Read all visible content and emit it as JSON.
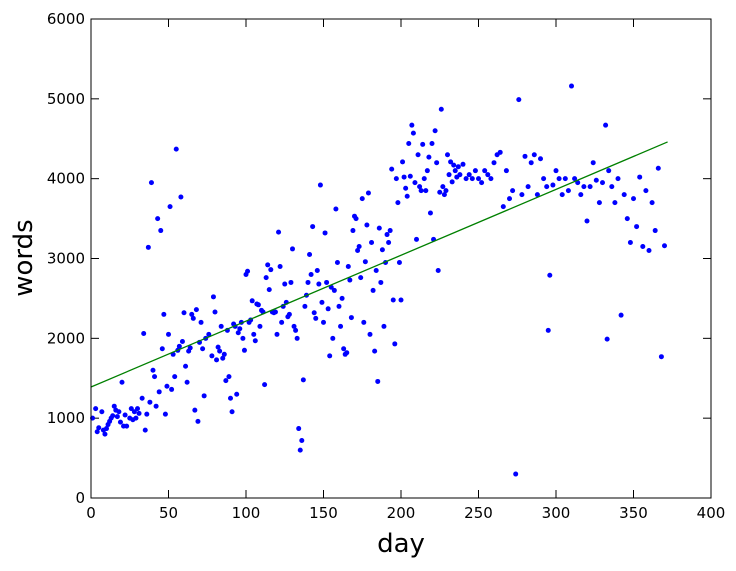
{
  "chart_data": {
    "type": "scatter",
    "xlabel": "day",
    "ylabel": "words",
    "xlim": [
      0,
      400
    ],
    "ylim": [
      0,
      6000
    ],
    "xticks": [
      0,
      50,
      100,
      150,
      200,
      250,
      300,
      350,
      400
    ],
    "yticks": [
      0,
      1000,
      2000,
      3000,
      4000,
      5000,
      6000
    ],
    "grid": false,
    "series": [
      {
        "type": "scatter",
        "color": "#0000ff",
        "x": [
          1,
          3,
          4,
          5,
          7,
          8,
          9,
          10,
          11,
          12,
          13,
          14,
          15,
          16,
          17,
          18,
          19,
          20,
          21,
          22,
          23,
          25,
          26,
          27,
          28,
          29,
          30,
          31,
          33,
          34,
          35,
          36,
          37,
          38,
          39,
          40,
          41,
          42,
          43,
          44,
          45,
          46,
          47,
          48,
          49,
          50,
          51,
          52,
          53,
          54,
          55,
          56,
          57,
          58,
          59,
          60,
          61,
          62,
          63,
          64,
          65,
          66,
          67,
          68,
          69,
          70,
          71,
          72,
          73,
          74,
          76,
          78,
          79,
          80,
          81,
          82,
          83,
          84,
          85,
          86,
          87,
          88,
          89,
          90,
          91,
          92,
          93,
          94,
          95,
          96,
          97,
          98,
          99,
          100,
          101,
          102,
          103,
          104,
          105,
          106,
          107,
          108,
          109,
          110,
          111,
          112,
          113,
          114,
          115,
          116,
          117,
          118,
          119,
          120,
          121,
          122,
          123,
          124,
          125,
          126,
          127,
          128,
          129,
          130,
          131,
          132,
          133,
          134,
          135,
          136,
          137,
          138,
          139,
          140,
          141,
          142,
          143,
          144,
          145,
          146,
          147,
          148,
          149,
          150,
          151,
          152,
          153,
          154,
          155,
          156,
          157,
          158,
          159,
          160,
          161,
          162,
          163,
          164,
          165,
          166,
          167,
          168,
          169,
          170,
          171,
          172,
          173,
          174,
          175,
          176,
          177,
          178,
          179,
          180,
          181,
          182,
          183,
          184,
          185,
          186,
          187,
          188,
          189,
          190,
          191,
          192,
          193,
          194,
          195,
          196,
          197,
          198,
          199,
          200,
          201,
          202,
          203,
          204,
          205,
          206,
          207,
          208,
          209,
          210,
          211,
          212,
          213,
          214,
          215,
          216,
          217,
          218,
          219,
          220,
          221,
          222,
          223,
          224,
          225,
          226,
          227,
          228,
          229,
          230,
          231,
          232,
          233,
          234,
          235,
          236,
          237,
          238,
          240,
          242,
          244,
          246,
          248,
          250,
          252,
          254,
          256,
          258,
          260,
          262,
          264,
          266,
          268,
          270,
          272,
          274,
          276,
          278,
          280,
          282,
          284,
          286,
          288,
          290,
          292,
          294,
          295,
          296,
          298,
          300,
          302,
          304,
          306,
          308,
          310,
          312,
          314,
          316,
          318,
          320,
          322,
          324,
          326,
          328,
          330,
          332,
          333,
          334,
          336,
          338,
          340,
          342,
          344,
          346,
          348,
          350,
          352,
          354,
          356,
          358,
          360,
          362,
          364,
          366,
          368,
          370
        ],
        "values": [
          1000,
          1120,
          830,
          880,
          1080,
          850,
          800,
          870,
          920,
          960,
          1000,
          1030,
          1150,
          1100,
          1020,
          1080,
          950,
          1450,
          900,
          1040,
          900,
          1000,
          1120,
          980,
          1080,
          1000,
          1120,
          1060,
          1250,
          2060,
          850,
          1050,
          3140,
          1200,
          3950,
          1600,
          1520,
          1150,
          3500,
          1330,
          3350,
          1870,
          2300,
          1050,
          1400,
          2050,
          3650,
          1360,
          1800,
          1520,
          4370,
          1850,
          1900,
          3770,
          1960,
          2320,
          1650,
          1450,
          1840,
          1880,
          2300,
          2250,
          1100,
          2360,
          960,
          1950,
          2200,
          1870,
          1280,
          2000,
          2050,
          1780,
          2520,
          2330,
          1730,
          1890,
          1840,
          2150,
          1750,
          1800,
          1470,
          2100,
          1520,
          1250,
          1080,
          2180,
          2150,
          1300,
          2070,
          2120,
          2200,
          2000,
          1850,
          2800,
          2840,
          2200,
          2230,
          2470,
          2050,
          1970,
          2430,
          2420,
          2150,
          2350,
          2330,
          1420,
          2760,
          2920,
          2610,
          2860,
          2330,
          2320,
          2330,
          2050,
          3330,
          2900,
          2200,
          2400,
          2680,
          2450,
          2270,
          2300,
          2700,
          3120,
          2150,
          2100,
          2000,
          870,
          600,
          720,
          1480,
          2400,
          2540,
          2700,
          3050,
          2800,
          3400,
          2320,
          2250,
          2850,
          2680,
          3920,
          2450,
          2200,
          3320,
          2700,
          2370,
          1780,
          2640,
          2000,
          2600,
          3620,
          2950,
          2400,
          2150,
          2500,
          1870,
          1800,
          1820,
          2900,
          2730,
          2260,
          3350,
          3530,
          3500,
          3100,
          3150,
          2760,
          3750,
          2200,
          2960,
          3420,
          3820,
          2050,
          3200,
          2600,
          1840,
          2850,
          1460,
          3380,
          2700,
          3110,
          2150,
          2950,
          3300,
          3200,
          3350,
          4120,
          2480,
          1930,
          4000,
          3700,
          2950,
          2480,
          4210,
          4020,
          3880,
          3780,
          4440,
          4030,
          4670,
          4570,
          3950,
          3240,
          4300,
          3900,
          3850,
          4430,
          4000,
          3850,
          4100,
          4270,
          3570,
          4440,
          3240,
          4600,
          4200,
          2850,
          3830,
          4870,
          3900,
          3800,
          3850,
          4300,
          4050,
          4210,
          3960,
          4170,
          4100,
          4020,
          4150,
          4050,
          4180,
          4000,
          4050,
          4000,
          4100,
          4000,
          3950,
          4100,
          4050,
          4000,
          4200,
          4300,
          4330,
          3650,
          4100,
          3750,
          3850,
          300,
          4990,
          3800,
          4280,
          3900,
          4200,
          4300,
          3800,
          4250,
          4000,
          3900,
          2100,
          2790,
          3920,
          4100,
          4000,
          3800,
          4000,
          3850,
          5160,
          4000,
          3950,
          3800,
          3900,
          3470,
          3900,
          4200,
          3980,
          3700,
          3950,
          4670,
          1990,
          4100,
          3900,
          3700,
          4000,
          2290,
          3800,
          3500,
          3200,
          3750,
          3400,
          4020,
          3150,
          3850,
          3100,
          3700,
          3350,
          4130,
          1770,
          3160
        ]
      },
      {
        "type": "line",
        "color": "#008000",
        "x": [
          0,
          372
        ],
        "values": [
          1390,
          4460
        ]
      }
    ]
  }
}
